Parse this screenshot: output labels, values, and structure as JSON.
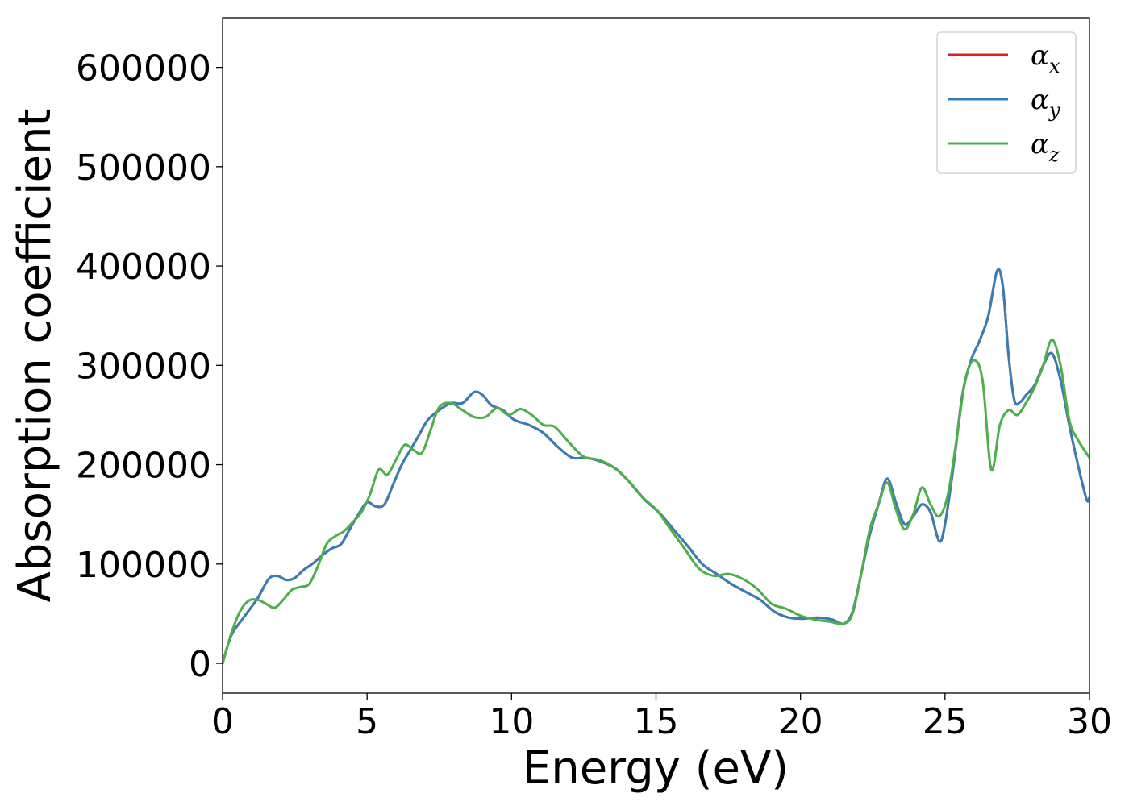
{
  "chart_data": {
    "type": "line",
    "title": "",
    "xlabel": "Energy (eV)",
    "ylabel": "Absorption coefficient",
    "xlim": [
      0,
      30
    ],
    "ylim": [
      -30000,
      650000
    ],
    "xticks": [
      0,
      5,
      10,
      15,
      20,
      25,
      30
    ],
    "xtick_labels": [
      "0",
      "5",
      "10",
      "15",
      "20",
      "25",
      "30"
    ],
    "yticks": [
      0,
      100000,
      200000,
      300000,
      400000,
      500000,
      600000
    ],
    "ytick_labels": [
      "0",
      "100000",
      "200000",
      "300000",
      "400000",
      "500000",
      "600000"
    ],
    "grid": false,
    "legend_position": "top-right",
    "series": [
      {
        "name": "αx",
        "legend_base": "α",
        "legend_sub": "x",
        "color": "#e41a1c",
        "x": [
          0,
          0.3,
          0.7,
          1.2,
          1.6,
          1.9,
          2.2,
          2.5,
          2.8,
          3.1,
          3.5,
          3.8,
          4.1,
          4.4,
          4.7,
          5.0,
          5.3,
          5.6,
          5.9,
          6.2,
          6.5,
          6.8,
          7.1,
          7.5,
          7.9,
          8.3,
          8.7,
          9.0,
          9.3,
          9.7,
          10.1,
          10.6,
          11.1,
          11.6,
          12.1,
          12.6,
          13.1,
          13.6,
          14.1,
          14.6,
          15.1,
          15.6,
          16.1,
          16.6,
          17.1,
          17.6,
          18.1,
          18.6,
          19.1,
          19.6,
          20.1,
          20.6,
          21.1,
          21.5,
          21.8,
          22.1,
          22.4,
          22.7,
          23.0,
          23.3,
          23.6,
          23.9,
          24.2,
          24.5,
          24.8,
          25.0,
          25.3,
          25.6,
          25.9,
          26.2,
          26.5,
          26.8,
          27.0,
          27.2,
          27.4,
          27.6,
          27.8,
          28.1,
          28.4,
          28.7,
          29.0,
          29.3,
          29.6,
          29.9,
          30.0
        ],
        "y": [
          0,
          28000,
          45000,
          65000,
          85000,
          88000,
          84000,
          86000,
          94000,
          100000,
          110000,
          116000,
          120000,
          135000,
          150000,
          162000,
          158000,
          160000,
          180000,
          200000,
          215000,
          230000,
          245000,
          255000,
          262000,
          262000,
          273000,
          270000,
          260000,
          255000,
          245000,
          240000,
          232000,
          218000,
          207000,
          207000,
          203000,
          196000,
          182000,
          165000,
          152000,
          135000,
          118000,
          100000,
          90000,
          80000,
          72000,
          64000,
          52000,
          46000,
          45000,
          46000,
          44000,
          40000,
          52000,
          90000,
          130000,
          160000,
          186000,
          162000,
          140000,
          148000,
          160000,
          152000,
          123000,
          140000,
          200000,
          270000,
          305000,
          325000,
          350000,
          395000,
          380000,
          310000,
          265000,
          263000,
          270000,
          280000,
          300000,
          312000,
          285000,
          240000,
          200000,
          165000,
          167000
        ]
      },
      {
        "name": "αy",
        "legend_base": "α",
        "legend_sub": "y",
        "color": "#377eb8",
        "x": [
          0,
          0.3,
          0.7,
          1.2,
          1.6,
          1.9,
          2.2,
          2.5,
          2.8,
          3.1,
          3.5,
          3.8,
          4.1,
          4.4,
          4.7,
          5.0,
          5.3,
          5.6,
          5.9,
          6.2,
          6.5,
          6.8,
          7.1,
          7.5,
          7.9,
          8.3,
          8.7,
          9.0,
          9.3,
          9.7,
          10.1,
          10.6,
          11.1,
          11.6,
          12.1,
          12.6,
          13.1,
          13.6,
          14.1,
          14.6,
          15.1,
          15.6,
          16.1,
          16.6,
          17.1,
          17.6,
          18.1,
          18.6,
          19.1,
          19.6,
          20.1,
          20.6,
          21.1,
          21.5,
          21.8,
          22.1,
          22.4,
          22.7,
          23.0,
          23.3,
          23.6,
          23.9,
          24.2,
          24.5,
          24.8,
          25.0,
          25.3,
          25.6,
          25.9,
          26.2,
          26.5,
          26.8,
          27.0,
          27.2,
          27.4,
          27.6,
          27.8,
          28.1,
          28.4,
          28.7,
          29.0,
          29.3,
          29.6,
          29.9,
          30.0
        ],
        "y": [
          0,
          28000,
          45000,
          65000,
          85000,
          88000,
          84000,
          86000,
          94000,
          100000,
          110000,
          116000,
          120000,
          135000,
          150000,
          162000,
          158000,
          160000,
          180000,
          200000,
          215000,
          230000,
          245000,
          255000,
          262000,
          262000,
          273000,
          270000,
          260000,
          255000,
          245000,
          240000,
          232000,
          218000,
          207000,
          207000,
          203000,
          196000,
          182000,
          165000,
          152000,
          135000,
          118000,
          100000,
          90000,
          80000,
          72000,
          64000,
          52000,
          46000,
          45000,
          46000,
          44000,
          40000,
          52000,
          90000,
          130000,
          160000,
          186000,
          162000,
          140000,
          148000,
          160000,
          152000,
          123000,
          140000,
          200000,
          270000,
          305000,
          325000,
          350000,
          395000,
          380000,
          310000,
          265000,
          263000,
          270000,
          280000,
          300000,
          312000,
          285000,
          240000,
          200000,
          165000,
          167000
        ]
      },
      {
        "name": "αz",
        "legend_base": "α",
        "legend_sub": "z",
        "color": "#4daf4a",
        "x": [
          0,
          0.3,
          0.6,
          0.9,
          1.2,
          1.5,
          1.8,
          2.1,
          2.4,
          2.7,
          3.0,
          3.3,
          3.6,
          3.9,
          4.2,
          4.5,
          4.8,
          5.1,
          5.4,
          5.7,
          6.0,
          6.3,
          6.6,
          6.9,
          7.2,
          7.5,
          7.9,
          8.3,
          8.7,
          9.1,
          9.5,
          9.9,
          10.3,
          10.7,
          11.1,
          11.5,
          12.0,
          12.5,
          13.0,
          13.5,
          14.0,
          14.5,
          15.0,
          15.5,
          16.0,
          16.5,
          17.0,
          17.5,
          18.0,
          18.5,
          19.0,
          19.5,
          20.0,
          20.5,
          21.0,
          21.5,
          21.8,
          22.1,
          22.4,
          22.7,
          23.0,
          23.3,
          23.6,
          23.9,
          24.2,
          24.5,
          24.8,
          25.1,
          25.4,
          25.7,
          26.0,
          26.3,
          26.6,
          26.9,
          27.2,
          27.5,
          27.8,
          28.1,
          28.4,
          28.7,
          29.0,
          29.3,
          29.6,
          30.0
        ],
        "y": [
          0,
          30000,
          52000,
          63000,
          64000,
          60000,
          56000,
          64000,
          74000,
          77000,
          80000,
          98000,
          120000,
          128000,
          133000,
          142000,
          152000,
          170000,
          195000,
          190000,
          205000,
          220000,
          215000,
          212000,
          235000,
          258000,
          262000,
          255000,
          248000,
          248000,
          257000,
          250000,
          256000,
          250000,
          240000,
          238000,
          222000,
          208000,
          205000,
          198000,
          185000,
          168000,
          155000,
          135000,
          115000,
          95000,
          88000,
          90000,
          85000,
          75000,
          60000,
          55000,
          48000,
          44000,
          42000,
          40000,
          50000,
          90000,
          135000,
          160000,
          182000,
          155000,
          135000,
          150000,
          177000,
          160000,
          148000,
          170000,
          225000,
          285000,
          305000,
          285000,
          195000,
          240000,
          255000,
          250000,
          262000,
          278000,
          300000,
          326000,
          300000,
          245000,
          225000,
          207000
        ]
      }
    ]
  }
}
